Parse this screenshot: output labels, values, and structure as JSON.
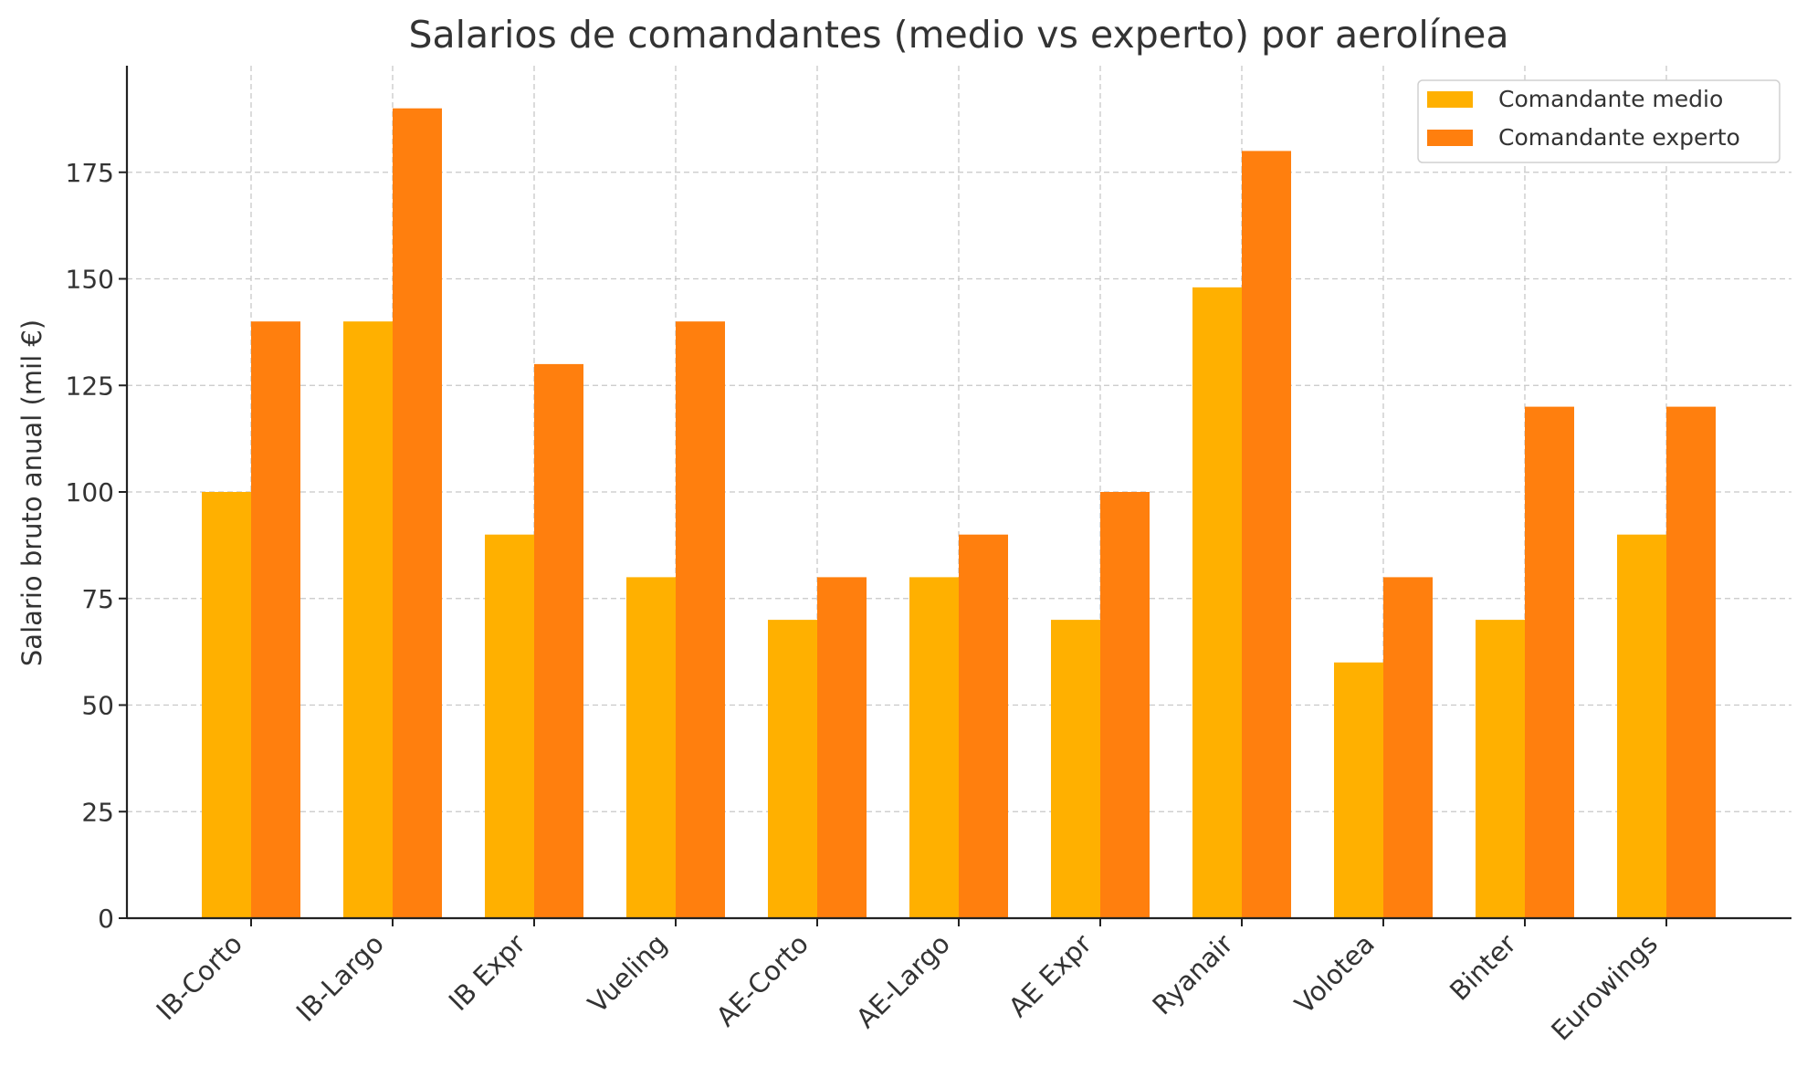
{
  "chart_data": {
    "type": "bar",
    "title": "Salarios de comandantes (medio vs experto) por aerolínea",
    "xlabel": "",
    "ylabel": "Salario bruto anual (mil €)",
    "ylim": [
      0,
      200
    ],
    "yticks": [
      0,
      25,
      50,
      75,
      100,
      125,
      150,
      175
    ],
    "grid": true,
    "legend_position": "top-right",
    "categories": [
      "IB-Corto",
      "IB-Largo",
      "IB Expr",
      "Vueling",
      "AE-Corto",
      "AE-Largo",
      "AE Expr",
      "Ryanair",
      "Volotea",
      "Binter",
      "Eurowings"
    ],
    "series": [
      {
        "name": "Comandante medio",
        "color": "#FFB000",
        "values": [
          100,
          140,
          90,
          80,
          70,
          80,
          70,
          148,
          60,
          70,
          90
        ]
      },
      {
        "name": "Comandante experto",
        "color": "#FF7F0E",
        "values": [
          140,
          190,
          130,
          140,
          80,
          90,
          100,
          180,
          80,
          120,
          120
        ]
      }
    ]
  }
}
